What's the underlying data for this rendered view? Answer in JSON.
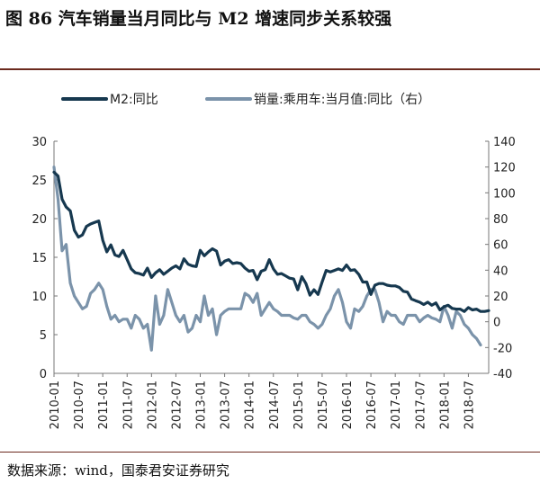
{
  "page": {
    "title": "图 86  汽车销量当月同比与 M2 增速同步关系较强",
    "source": "数据来源：wind，国泰君安证券研究"
  },
  "chart_data": {
    "type": "line",
    "title": "",
    "legend_position": "top",
    "grid": false,
    "x_tick_labels": [
      "2010-01",
      "2010-07",
      "2011-01",
      "2011-07",
      "2012-01",
      "2012-07",
      "2013-01",
      "2013-07",
      "2014-01",
      "2014-07",
      "2015-01",
      "2015-07",
      "2016-01",
      "2016-07",
      "2017-01",
      "2017-07",
      "2018-01",
      "2018-07"
    ],
    "x_range": [
      "2010-01",
      "2018-12"
    ],
    "y_left": {
      "ticks": [
        0,
        5,
        10,
        15,
        20,
        25,
        30
      ],
      "range": [
        0,
        30
      ]
    },
    "y_right": {
      "ticks": [
        -40,
        -20,
        0,
        20,
        40,
        60,
        80,
        100,
        120,
        140
      ],
      "range": [
        -40,
        140
      ]
    },
    "series": [
      {
        "name": "M2:同比",
        "axis": "left",
        "color": "#16384f",
        "start": "2010-01",
        "values": [
          26.0,
          25.5,
          22.5,
          21.5,
          21.0,
          18.5,
          17.6,
          17.9,
          19.0,
          19.3,
          19.5,
          19.7,
          17.2,
          15.7,
          16.6,
          15.3,
          15.1,
          15.9,
          14.7,
          13.5,
          13.0,
          12.9,
          12.7,
          13.6,
          12.4,
          13.0,
          13.4,
          12.8,
          13.2,
          13.6,
          13.9,
          13.5,
          14.8,
          14.1,
          13.9,
          13.8,
          15.9,
          15.2,
          15.7,
          16.1,
          15.8,
          14.0,
          14.5,
          14.7,
          14.2,
          14.3,
          14.2,
          13.6,
          13.2,
          13.3,
          12.1,
          13.2,
          13.4,
          14.7,
          13.5,
          12.8,
          12.9,
          12.6,
          12.3,
          12.2,
          10.8,
          12.5,
          11.6,
          10.1,
          10.8,
          10.2,
          11.8,
          13.3,
          13.1,
          13.3,
          13.5,
          13.3,
          14.0,
          13.3,
          13.4,
          12.8,
          11.8,
          11.8,
          10.2,
          11.4,
          11.6,
          11.6,
          11.4,
          11.3,
          11.3,
          11.1,
          10.6,
          10.5,
          9.6,
          9.4,
          9.2,
          8.9,
          9.2,
          8.8,
          9.1,
          8.2,
          8.6,
          8.8,
          8.4,
          8.3,
          8.3,
          8.0,
          8.5,
          8.2,
          8.3,
          8.0,
          8.0,
          8.1
        ]
      },
      {
        "name": "销量:乘用车:当月值:同比（右）",
        "axis": "right",
        "color": "#7b93aa",
        "start": "2010-01",
        "values": [
          120,
          95,
          55,
          60,
          30,
          20,
          15,
          10,
          12,
          22,
          25,
          30,
          25,
          12,
          2,
          5,
          0,
          2,
          2,
          -5,
          5,
          2,
          -5,
          -2,
          -22,
          20,
          -2,
          5,
          25,
          15,
          5,
          0,
          5,
          -8,
          -5,
          5,
          0,
          20,
          5,
          10,
          -10,
          5,
          8,
          10,
          10,
          10,
          10,
          22,
          20,
          15,
          22,
          5,
          10,
          15,
          10,
          8,
          5,
          5,
          5,
          3,
          2,
          5,
          5,
          0,
          -2,
          -5,
          -2,
          5,
          10,
          20,
          25,
          15,
          0,
          -5,
          10,
          8,
          12,
          20,
          25,
          25,
          15,
          0,
          8,
          5,
          5,
          0,
          -2,
          5,
          5,
          5,
          0,
          3,
          5,
          3,
          2,
          0,
          12,
          5,
          -5,
          8,
          5,
          -2,
          -5,
          -10,
          -13,
          -18
        ]
      }
    ]
  }
}
